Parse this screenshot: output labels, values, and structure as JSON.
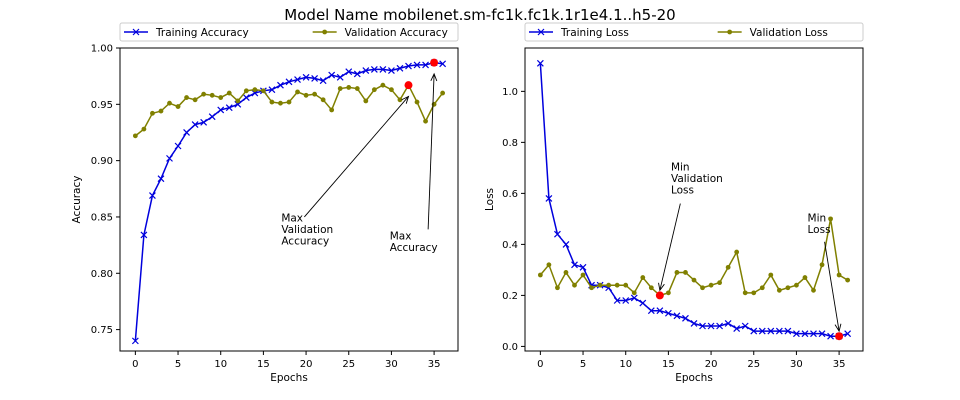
{
  "figure": {
    "title": "Model Name mobilenet.sm-fc1k.fc1k.1r1e4.1..h5-20"
  },
  "colors": {
    "training": "#0000dd",
    "validation": "#808000",
    "marker_best": "#ff0000"
  },
  "chart_data": [
    {
      "type": "line",
      "xlabel": "Epochs",
      "ylabel": "Accuracy",
      "xlim": [
        -1.8,
        37.8
      ],
      "ylim": [
        0.731,
        1.0
      ],
      "xticks": [
        0,
        5,
        10,
        15,
        20,
        25,
        30,
        35
      ],
      "xtick_labels": [
        "0",
        "5",
        "10",
        "15",
        "20",
        "25",
        "30",
        "35"
      ],
      "yticks": [
        0.75,
        0.8,
        0.85,
        0.9,
        0.95,
        1.0
      ],
      "ytick_labels": [
        "0.75",
        "0.80",
        "0.85",
        "0.90",
        "0.95",
        "1.00"
      ],
      "legend_position": "top",
      "series": [
        {
          "name": "Training Accuracy",
          "marker": "x",
          "x": [
            0,
            1,
            2,
            3,
            4,
            5,
            6,
            7,
            8,
            9,
            10,
            11,
            12,
            13,
            14,
            15,
            16,
            17,
            18,
            19,
            20,
            21,
            22,
            23,
            24,
            25,
            26,
            27,
            28,
            29,
            30,
            31,
            32,
            33,
            34,
            35,
            36
          ],
          "values": [
            0.74,
            0.834,
            0.869,
            0.884,
            0.902,
            0.913,
            0.925,
            0.932,
            0.934,
            0.939,
            0.945,
            0.947,
            0.95,
            0.956,
            0.96,
            0.962,
            0.963,
            0.967,
            0.97,
            0.972,
            0.974,
            0.973,
            0.971,
            0.976,
            0.974,
            0.979,
            0.977,
            0.98,
            0.981,
            0.981,
            0.98,
            0.982,
            0.984,
            0.985,
            0.985,
            0.987,
            0.986
          ]
        },
        {
          "name": "Validation Accuracy",
          "marker": "o",
          "x": [
            0,
            1,
            2,
            3,
            4,
            5,
            6,
            7,
            8,
            9,
            10,
            11,
            12,
            13,
            14,
            15,
            16,
            17,
            18,
            19,
            20,
            21,
            22,
            23,
            24,
            25,
            26,
            27,
            28,
            29,
            30,
            31,
            32,
            33,
            34,
            35,
            36
          ],
          "values": [
            0.922,
            0.928,
            0.942,
            0.944,
            0.951,
            0.948,
            0.956,
            0.954,
            0.959,
            0.958,
            0.956,
            0.96,
            0.953,
            0.962,
            0.963,
            0.962,
            0.952,
            0.951,
            0.952,
            0.961,
            0.958,
            0.959,
            0.954,
            0.945,
            0.964,
            0.965,
            0.964,
            0.953,
            0.963,
            0.967,
            0.963,
            0.954,
            0.967,
            0.952,
            0.935,
            0.95,
            0.96
          ]
        }
      ],
      "best_points": [
        {
          "x": 32,
          "y": 0.967
        },
        {
          "x": 35,
          "y": 0.987
        }
      ],
      "annotations": [
        {
          "lines": [
            "Max",
            "Validation",
            "Accuracy"
          ],
          "text_x": 17.1,
          "text_y": 0.846,
          "arrow_from": [
            19.8,
            0.85
          ],
          "arrow_to": [
            32,
            0.957
          ]
        },
        {
          "lines": [
            "Max",
            "Accuracy"
          ],
          "text_x": 29.8,
          "text_y": 0.83,
          "arrow_from": [
            34.3,
            0.839
          ],
          "arrow_to": [
            35,
            0.977
          ]
        }
      ]
    },
    {
      "type": "line",
      "xlabel": "Epochs",
      "ylabel": "Loss",
      "xlim": [
        -1.8,
        37.8
      ],
      "ylim": [
        -0.018,
        1.17
      ],
      "xticks": [
        0,
        5,
        10,
        15,
        20,
        25,
        30,
        35
      ],
      "xtick_labels": [
        "0",
        "5",
        "10",
        "15",
        "20",
        "25",
        "30",
        "35"
      ],
      "yticks": [
        0.0,
        0.2,
        0.4,
        0.6,
        0.8,
        1.0
      ],
      "ytick_labels": [
        "0.0",
        "0.2",
        "0.4",
        "0.6",
        "0.8",
        "1.0"
      ],
      "legend_position": "top",
      "series": [
        {
          "name": "Training Loss",
          "marker": "x",
          "x": [
            0,
            1,
            2,
            3,
            4,
            5,
            6,
            7,
            8,
            9,
            10,
            11,
            12,
            13,
            14,
            15,
            16,
            17,
            18,
            19,
            20,
            21,
            22,
            23,
            24,
            25,
            26,
            27,
            28,
            29,
            30,
            31,
            32,
            33,
            34,
            35,
            36
          ],
          "values": [
            1.11,
            0.58,
            0.44,
            0.4,
            0.32,
            0.31,
            0.24,
            0.24,
            0.23,
            0.18,
            0.18,
            0.19,
            0.17,
            0.14,
            0.14,
            0.13,
            0.12,
            0.11,
            0.09,
            0.08,
            0.08,
            0.08,
            0.09,
            0.07,
            0.08,
            0.06,
            0.06,
            0.06,
            0.06,
            0.06,
            0.05,
            0.05,
            0.05,
            0.05,
            0.04,
            0.04,
            0.05
          ]
        },
        {
          "name": "Validation Loss",
          "marker": "o",
          "x": [
            0,
            1,
            2,
            3,
            4,
            5,
            6,
            7,
            8,
            9,
            10,
            11,
            12,
            13,
            14,
            15,
            16,
            17,
            18,
            19,
            20,
            21,
            22,
            23,
            24,
            25,
            26,
            27,
            28,
            29,
            30,
            31,
            32,
            33,
            34,
            35,
            36
          ],
          "values": [
            0.28,
            0.32,
            0.23,
            0.29,
            0.24,
            0.28,
            0.23,
            0.24,
            0.24,
            0.24,
            0.24,
            0.21,
            0.27,
            0.23,
            0.2,
            0.21,
            0.29,
            0.29,
            0.26,
            0.23,
            0.24,
            0.25,
            0.31,
            0.37,
            0.21,
            0.21,
            0.23,
            0.28,
            0.22,
            0.23,
            0.24,
            0.27,
            0.22,
            0.32,
            0.5,
            0.28,
            0.26
          ]
        }
      ],
      "best_points": [
        {
          "x": 14,
          "y": 0.2
        },
        {
          "x": 35,
          "y": 0.04
        }
      ],
      "annotations": [
        {
          "lines": [
            "Min",
            "Validation",
            "Loss"
          ],
          "text_x": 15.3,
          "text_y": 0.69,
          "arrow_from": [
            16.4,
            0.56
          ],
          "arrow_to": [
            14,
            0.22
          ]
        },
        {
          "lines": [
            "Min",
            "Loss"
          ],
          "text_x": 31.3,
          "text_y": 0.49,
          "arrow_from": [
            33.3,
            0.41
          ],
          "arrow_to": [
            35,
            0.06
          ]
        }
      ]
    }
  ]
}
